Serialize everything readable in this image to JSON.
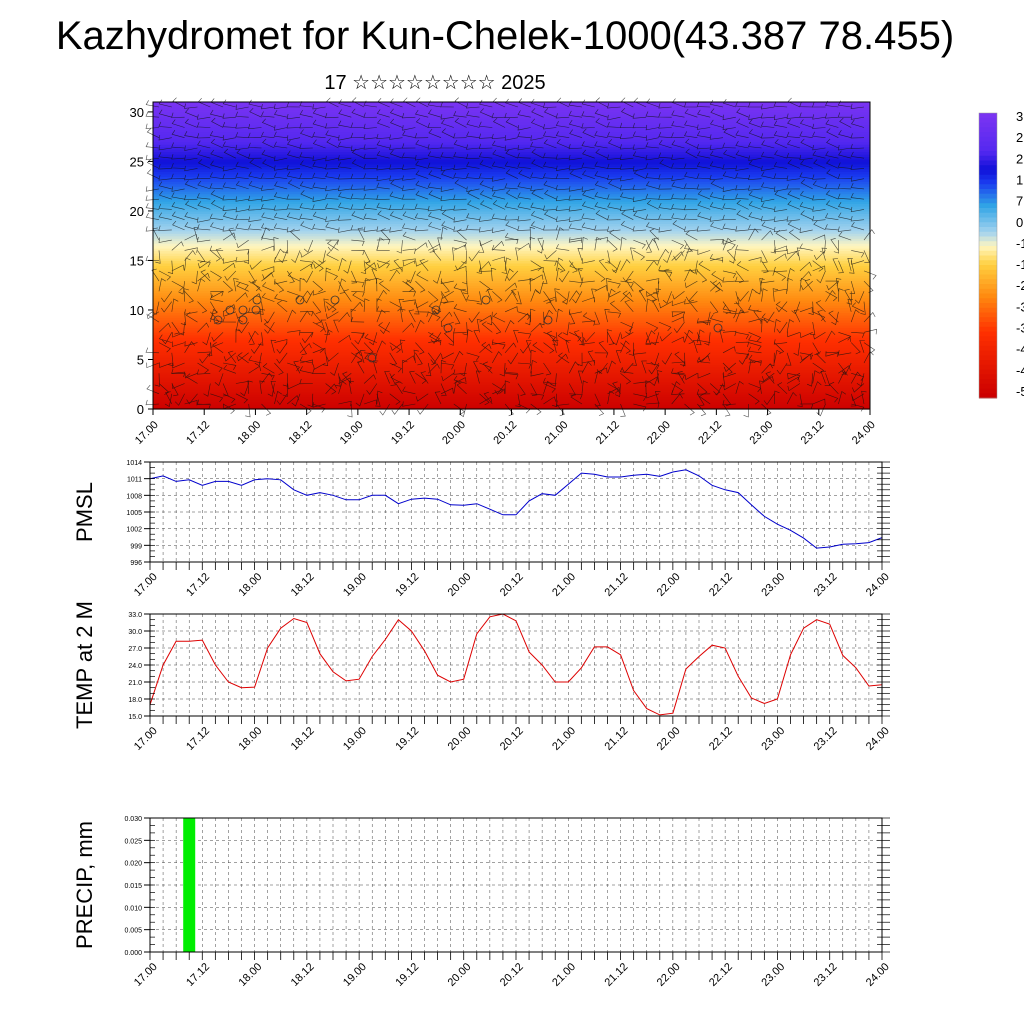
{
  "header": {
    "title": "Kazhydromet for Kun-Chelek-1000(43.387 78.455)",
    "subtitle": "17 ☆☆☆☆☆☆☆☆ 2025"
  },
  "chart_data": [
    {
      "type": "heatmap",
      "name": "vertical-cross-section",
      "xticks": [
        "17.00",
        "17.12",
        "18.00",
        "18.12",
        "19.00",
        "19.12",
        "20.00",
        "20.12",
        "21.00",
        "21.12",
        "22.00",
        "22.12",
        "23.00",
        "23.12",
        "24.00"
      ],
      "yticks": [
        "0",
        "5",
        "10",
        "15",
        "20",
        "25",
        "30"
      ],
      "ylim": [
        0,
        31
      ],
      "colorbar_labels": [
        "3",
        "2",
        "2",
        "1",
        "7",
        "0",
        "-1",
        "-1",
        "-2",
        "-3",
        "-3",
        "-4",
        "-4",
        "-5"
      ],
      "color_stops": [
        {
          "level": 0,
          "color": "#cc0000"
        },
        {
          "level": 7,
          "color": "#ff3000"
        },
        {
          "level": 11,
          "color": "#ff8a10"
        },
        {
          "level": 14.5,
          "color": "#ffd040"
        },
        {
          "level": 16.5,
          "color": "#fff6c0"
        },
        {
          "level": 18,
          "color": "#a6d4ee"
        },
        {
          "level": 21,
          "color": "#30a4e6"
        },
        {
          "level": 23.5,
          "color": "#1a3cf0"
        },
        {
          "level": 25,
          "color": "#1010d8"
        },
        {
          "level": 27,
          "color": "#5428f0"
        },
        {
          "level": 31,
          "color": "#7a34f2"
        }
      ]
    },
    {
      "type": "line",
      "name": "pmsl",
      "ylabel": "PMSL",
      "ylim": [
        996,
        1014
      ],
      "yticks": [
        "1014",
        "1011",
        "1008",
        "1005",
        "1002",
        "999",
        "996"
      ],
      "xticks": [
        "17.00",
        "17.12",
        "18.00",
        "18.12",
        "19.00",
        "19.12",
        "20.00",
        "20.12",
        "21.00",
        "21.12",
        "22.00",
        "22.12",
        "23.00",
        "23.12",
        "24.00"
      ],
      "x_step_hours": 3,
      "color": "#0000cc",
      "values": [
        1011,
        1011.5,
        1010.5,
        1010.8,
        1009.8,
        1010.5,
        1010.5,
        1009.8,
        1010.8,
        1011,
        1010.8,
        1009,
        1008,
        1008.5,
        1008,
        1007.2,
        1007.2,
        1008,
        1008,
        1006.5,
        1007.3,
        1007.5,
        1007.3,
        1006.3,
        1006.2,
        1006.5,
        1005.5,
        1004.5,
        1004.5,
        1007,
        1008.3,
        1008,
        1010,
        1012,
        1011.8,
        1011.3,
        1011.3,
        1011.6,
        1011.8,
        1011.4,
        1012.2,
        1012.6,
        1011.5,
        1009.8,
        1009,
        1008.5,
        1006.3,
        1004.2,
        1002.8,
        1001.7,
        1000.3,
        998.5,
        998.7,
        999.2,
        999.3,
        999.5,
        1000.4
      ]
    },
    {
      "type": "line",
      "name": "temp-2m",
      "ylabel": "TEMP at 2 M",
      "ylim": [
        15,
        33
      ],
      "yticks": [
        "33.0",
        "30.0",
        "27.0",
        "24.0",
        "21.0",
        "18.0",
        "15.0"
      ],
      "xticks": [
        "17.00",
        "17.12",
        "18.00",
        "18.12",
        "19.00",
        "19.12",
        "20.00",
        "20.12",
        "21.00",
        "21.12",
        "22.00",
        "22.12",
        "23.00",
        "23.12",
        "24.00"
      ],
      "x_step_hours": 3,
      "color": "#dd0000",
      "values": [
        17,
        24,
        28.2,
        28.2,
        28.4,
        24,
        21,
        20,
        20.1,
        27,
        30.5,
        32.2,
        31.5,
        26,
        22.8,
        21.2,
        21.5,
        25.5,
        28.5,
        32,
        30,
        26.5,
        22.2,
        21,
        21.5,
        29.5,
        32.5,
        33,
        31.8,
        26.3,
        24,
        21,
        21,
        23.5,
        27.2,
        27.2,
        25.8,
        19.5,
        16.3,
        15.2,
        15.5,
        23.3,
        25.5,
        27.5,
        27,
        22,
        18.2,
        17.2,
        18,
        25.8,
        30.5,
        32,
        31.2,
        25.7,
        23.5,
        20.3,
        20.5
      ]
    },
    {
      "type": "bar",
      "name": "precip",
      "ylabel": "PRECIP, mm",
      "ylim": [
        0,
        0.03
      ],
      "yticks": [
        "0.030",
        "0.025",
        "0.020",
        "0.015",
        "0.010",
        "0.005",
        "0.000"
      ],
      "xticks": [
        "17.00",
        "17.12",
        "18.00",
        "18.12",
        "19.00",
        "19.12",
        "20.00",
        "20.12",
        "21.00",
        "21.12",
        "22.00",
        "22.12",
        "23.00",
        "23.12",
        "24.00"
      ],
      "bars": [
        {
          "x_hour": 9,
          "value": 0.03
        }
      ],
      "color": "#00ee00"
    }
  ]
}
